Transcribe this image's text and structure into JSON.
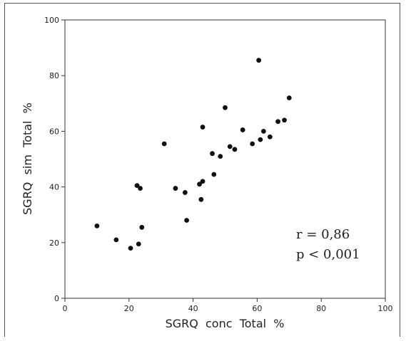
{
  "chart_data": {
    "type": "scatter",
    "title": "",
    "xlabel": "SGRQ  conc  Total  %",
    "ylabel": "SGRQ  sim  Total  %",
    "xlim": [
      0,
      100
    ],
    "ylim": [
      0,
      100
    ],
    "xticks": [
      "0",
      "20",
      "40",
      "60",
      "80",
      "100"
    ],
    "yticks": [
      "0",
      "20",
      "40",
      "60",
      "80",
      "100"
    ],
    "grid": false,
    "annotations": [
      "r = 0,86",
      "p < 0,001"
    ],
    "x": [
      10,
      16,
      20.5,
      22.5,
      23,
      23.5,
      24,
      31,
      34.5,
      37.5,
      38,
      42,
      42.5,
      43,
      43,
      46,
      46.5,
      48.5,
      50,
      51.5,
      53,
      55.5,
      58.5,
      60.5,
      61,
      62,
      64,
      66.5,
      68.5,
      70
    ],
    "y": [
      26,
      21,
      18,
      40.5,
      19.5,
      39.5,
      25.5,
      55.5,
      39.5,
      38,
      28,
      41,
      35.5,
      42,
      61.5,
      52,
      44.5,
      51,
      68.5,
      54.5,
      53.5,
      60.5,
      55.5,
      85.5,
      57,
      60,
      58,
      63.5,
      64,
      72
    ]
  }
}
